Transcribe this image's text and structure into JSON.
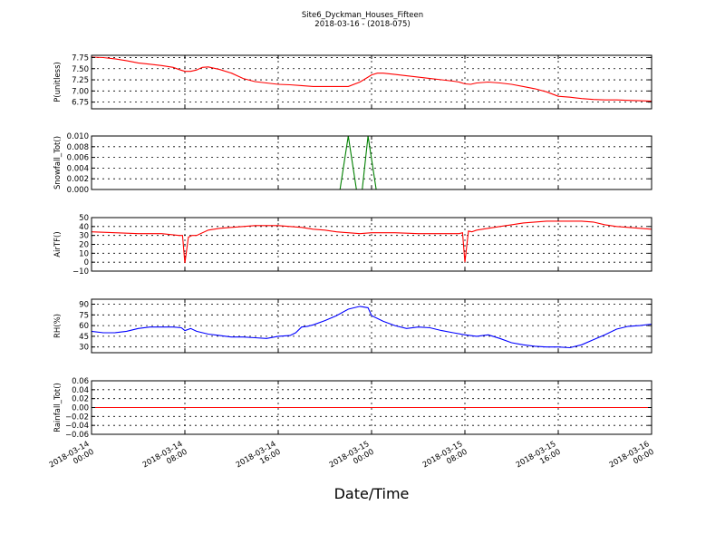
{
  "figure": {
    "title_line1": "Site6_Dyckman_Houses_Fifteen",
    "title_line2": "2018-03-16 - (2018-075)",
    "xlabel": "Date/Time"
  },
  "x_axis": {
    "range": [
      "2018-03-14 00:00",
      "2018-03-16 00:00"
    ],
    "tick_values_hours": [
      0,
      8,
      16,
      24,
      32,
      40,
      48
    ],
    "tick_labels": [
      [
        "2018-03-14",
        "00:00"
      ],
      [
        "2018-03-14",
        "08:00"
      ],
      [
        "2018-03-14",
        "16:00"
      ],
      [
        "2018-03-15",
        "00:00"
      ],
      [
        "2018-03-15",
        "08:00"
      ],
      [
        "2018-03-15",
        "16:00"
      ],
      [
        "2018-03-16",
        "00:00"
      ]
    ]
  },
  "chart_data": [
    {
      "type": "line",
      "ylabel": "P(unitless)",
      "ylim": [
        6.6,
        7.8
      ],
      "yticks": [
        6.75,
        7.0,
        7.25,
        7.5,
        7.75
      ],
      "ytick_labels": [
        "6.75",
        "7.00",
        "7.25",
        "7.50",
        "7.75"
      ],
      "color": "#ff0000",
      "grid": true,
      "x_hours": [
        0,
        1,
        2,
        3,
        4,
        5,
        6,
        7,
        7.5,
        8,
        8.5,
        9,
        9.5,
        10,
        11,
        12,
        13,
        14,
        15,
        16,
        17,
        18,
        19,
        20,
        21,
        22,
        23,
        23.5,
        24,
        24.5,
        25,
        26,
        27,
        28,
        29,
        30,
        31,
        31.5,
        32,
        32.5,
        33,
        34,
        35,
        36,
        37,
        38,
        39,
        40,
        41,
        42,
        43,
        44,
        45,
        46,
        47,
        48
      ],
      "values": [
        7.76,
        7.75,
        7.72,
        7.68,
        7.63,
        7.6,
        7.57,
        7.53,
        7.48,
        7.44,
        7.44,
        7.47,
        7.53,
        7.54,
        7.48,
        7.4,
        7.28,
        7.21,
        7.18,
        7.15,
        7.14,
        7.12,
        7.1,
        7.1,
        7.1,
        7.1,
        7.2,
        7.28,
        7.36,
        7.4,
        7.4,
        7.37,
        7.34,
        7.31,
        7.28,
        7.25,
        7.22,
        7.2,
        7.16,
        7.15,
        7.18,
        7.2,
        7.18,
        7.15,
        7.1,
        7.05,
        6.98,
        6.88,
        6.86,
        6.83,
        6.81,
        6.8,
        6.8,
        6.79,
        6.78,
        6.77
      ]
    },
    {
      "type": "line",
      "ylabel": "Snowfall_Tot()",
      "ylim": [
        0.0,
        0.01
      ],
      "yticks": [
        0.0,
        0.002,
        0.004,
        0.006,
        0.008,
        0.01
      ],
      "ytick_labels": [
        "0.000",
        "0.002",
        "0.004",
        "0.006",
        "0.008",
        "0.010"
      ],
      "color": "#008000",
      "grid": true,
      "x_hours": [
        0,
        21.3,
        22.0,
        22.7,
        23.2,
        23.7,
        24.4,
        48
      ],
      "values": [
        0,
        0,
        0.01,
        0,
        0,
        0.01,
        0,
        0
      ]
    },
    {
      "type": "line",
      "ylabel": "AirTF()",
      "ylim": [
        -10,
        50
      ],
      "yticks": [
        -10,
        0,
        10,
        20,
        30,
        40,
        50
      ],
      "ytick_labels": [
        "−10",
        "0",
        "10",
        "20",
        "30",
        "40",
        "50"
      ],
      "color": "#ff0000",
      "grid": true,
      "x_hours": [
        0,
        2,
        4,
        6,
        7.5,
        7.8,
        8.0,
        8.3,
        8.6,
        9,
        10,
        11,
        12,
        13,
        14,
        16,
        17,
        18,
        19,
        20,
        21,
        22,
        23,
        24,
        26,
        28,
        30,
        31.5,
        31.8,
        32.0,
        32.3,
        32.6,
        33,
        34,
        35,
        36,
        37,
        38,
        39,
        40,
        41,
        42,
        43,
        44,
        45,
        46,
        47,
        48
      ],
      "values": [
        34,
        33,
        32,
        32,
        30,
        30,
        -1,
        28,
        30,
        30,
        36,
        38,
        39,
        40,
        41,
        41,
        40,
        39,
        37,
        36,
        34,
        33,
        32,
        33,
        33,
        32,
        32,
        32,
        33,
        0,
        35,
        34,
        36,
        38,
        40,
        42,
        44,
        45,
        46,
        46,
        46,
        46,
        45,
        42,
        40,
        39,
        38,
        37
      ]
    },
    {
      "type": "line",
      "ylabel": "RH(%)",
      "ylim": [
        22,
        97
      ],
      "yticks": [
        30,
        45,
        60,
        75,
        90
      ],
      "ytick_labels": [
        "30",
        "45",
        "60",
        "75",
        "90"
      ],
      "color": "#0000ff",
      "grid": true,
      "x_hours": [
        0,
        1,
        2,
        3,
        4,
        5,
        6,
        7,
        7.7,
        8,
        8.5,
        9,
        10,
        11,
        12,
        13,
        14,
        15,
        16,
        17,
        17.5,
        18,
        18.5,
        19,
        20,
        21,
        22,
        23,
        23.7,
        24,
        25,
        26,
        27,
        28,
        29,
        30,
        31,
        32,
        33,
        34,
        35,
        36,
        37,
        38,
        39,
        40,
        41,
        42,
        43,
        44,
        45,
        46,
        47,
        48
      ],
      "values": [
        52,
        50,
        50,
        52,
        56,
        58,
        58,
        58,
        57,
        53,
        56,
        52,
        48,
        46,
        44,
        44,
        43,
        42,
        45,
        46,
        50,
        58,
        59,
        61,
        67,
        74,
        83,
        87,
        85,
        74,
        66,
        60,
        56,
        58,
        57,
        53,
        50,
        47,
        45,
        47,
        42,
        36,
        33,
        31,
        30,
        30,
        29,
        33,
        40,
        47,
        55,
        59,
        60,
        62
      ]
    },
    {
      "type": "line",
      "ylabel": "Rainfall_Tot()",
      "ylim": [
        -0.06,
        0.06
      ],
      "yticks": [
        -0.06,
        -0.04,
        -0.02,
        0.0,
        0.02,
        0.04,
        0.06
      ],
      "ytick_labels": [
        "−0.06",
        "−0.04",
        "−0.02",
        "0.00",
        "0.02",
        "0.04",
        "0.06"
      ],
      "color": "#ff0000",
      "grid": true,
      "x_hours": [
        0,
        48
      ],
      "values": [
        0,
        0
      ]
    }
  ]
}
